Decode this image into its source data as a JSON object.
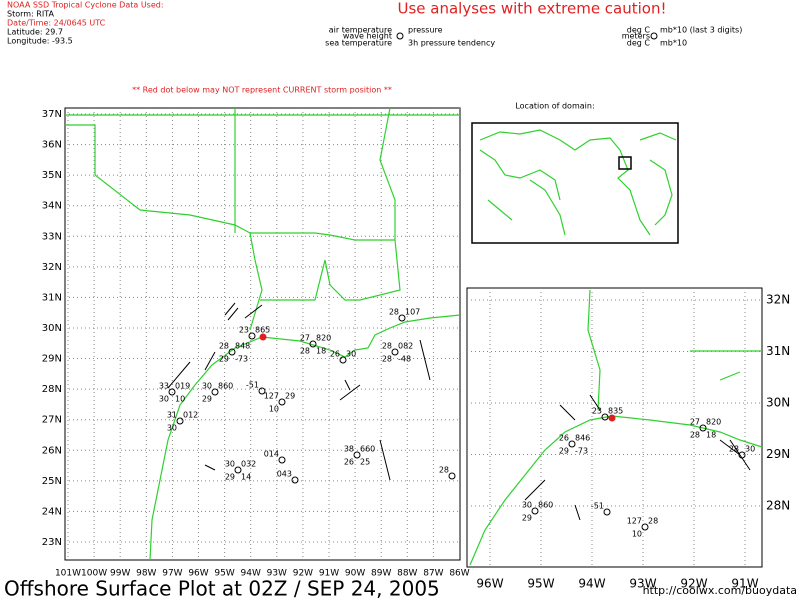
{
  "header": {
    "lines": [
      "NOAA SSD Tropical Cyclone Data Used:",
      "Storm: RITA",
      "Date/Time: 24/0645 UTC",
      "Latitude: 29.7",
      "Longitude: -93.5"
    ],
    "caution": "Use analyses with extreme caution!"
  },
  "legend": {
    "air_temperature": "air temperature",
    "wave_height": "wave height",
    "sea_temperature": "sea temperature",
    "pressure": "pressure",
    "tendency": "3h pressure tendency",
    "units_left": [
      "deg C",
      "meters",
      "deg C"
    ],
    "units_right": [
      "mb*10 (last 3 digits)",
      "mb*10"
    ]
  },
  "warning": "** Red dot below may NOT represent CURRENT storm position **",
  "domain_title": "Location of domain:",
  "main_map": {
    "lat_labels": [
      "37N",
      "36N",
      "35N",
      "34N",
      "33N",
      "32N",
      "31N",
      "30N",
      "29N",
      "28N",
      "27N",
      "26N",
      "25N",
      "24N",
      "23N"
    ],
    "lon_labels": [
      "101W",
      "100W",
      "99W",
      "98W",
      "97W",
      "96W",
      "95W",
      "94W",
      "93W",
      "92W",
      "91W",
      "90W",
      "89W",
      "88W",
      "87W",
      "86W"
    ],
    "stations": [
      [
        "23",
        "865"
      ],
      [
        "28",
        "848",
        "29",
        "-73"
      ],
      [
        "27",
        "820",
        "28",
        "18"
      ],
      [
        "26",
        "30"
      ],
      [
        "28",
        "107"
      ],
      [
        "28",
        "082",
        "28",
        "-48"
      ],
      [
        "30",
        "860",
        "29"
      ],
      [
        "-51"
      ],
      [
        "127",
        "29",
        "10"
      ],
      [
        "33",
        "019",
        "30",
        "10"
      ],
      [
        "31",
        "012",
        "30"
      ],
      [
        "30",
        "032",
        "29",
        "14"
      ],
      [
        "014"
      ],
      [
        "043"
      ],
      [
        "38",
        "660",
        "26",
        "25"
      ],
      [
        "28"
      ]
    ]
  },
  "inset_map": {
    "lat_labels": [
      "32N",
      "31N",
      "30N",
      "29N",
      "28N"
    ],
    "lon_labels": [
      "96W",
      "95W",
      "94W",
      "93W",
      "92W",
      "91W"
    ],
    "stations": [
      [
        "23",
        "835"
      ],
      [
        "26",
        "846",
        "29",
        "-73"
      ],
      [
        "27",
        "820",
        "28",
        "18"
      ],
      [
        "28",
        "30"
      ],
      [
        "30",
        "860",
        "29"
      ],
      [
        "-51"
      ],
      [
        "127",
        "28",
        "10"
      ]
    ]
  },
  "footer": {
    "title": "Offshore Surface Plot at 02Z / SEP 24, 2005",
    "url": "http://coolwx.com/buoydata"
  }
}
